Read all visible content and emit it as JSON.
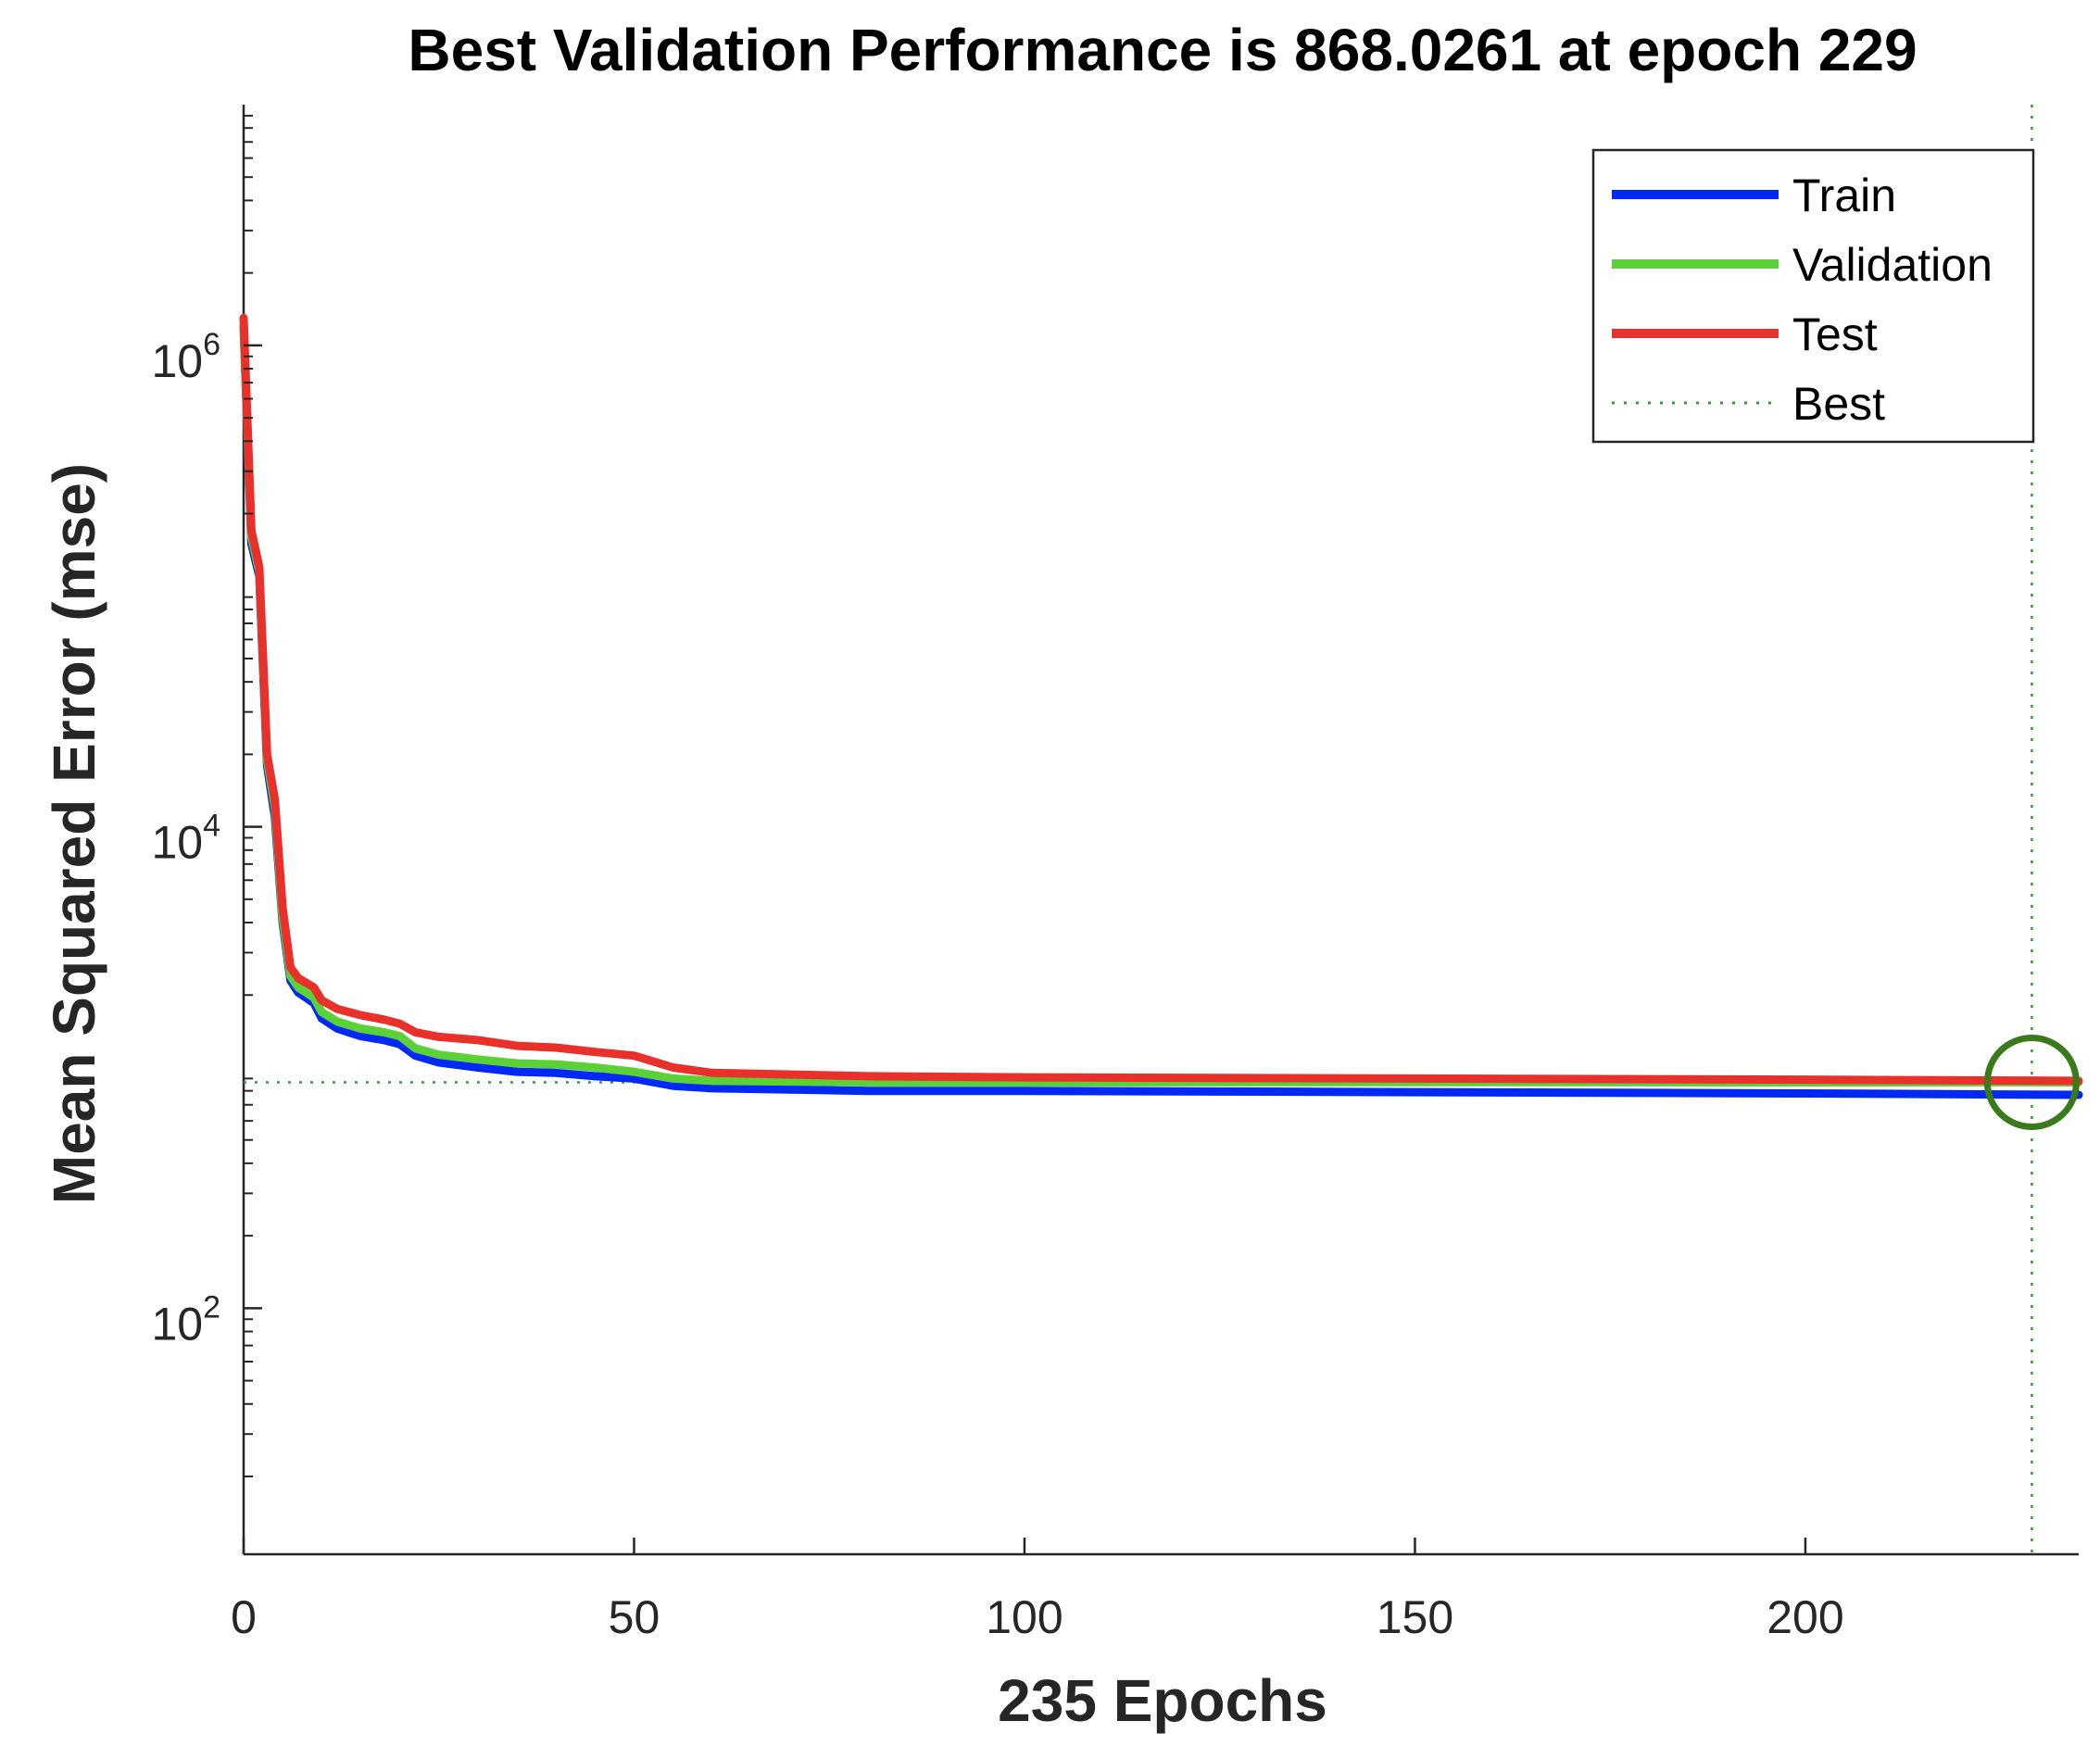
{
  "chart_data": {
    "type": "line",
    "title": "Best Validation Performance is 868.0261 at epoch 229",
    "xlabel": "235 Epochs",
    "ylabel": "Mean Squared Error  (mse)",
    "yscale": "log",
    "xlim": [
      0,
      235
    ],
    "ylim": [
      9.5,
      10000000
    ],
    "x_ticks": [
      0,
      50,
      100,
      150,
      200
    ],
    "x_tick_labels": [
      "0",
      "50",
      "100",
      "150",
      "200"
    ],
    "y_ticks": [
      {
        "value": 100,
        "base": "10",
        "exp": "2"
      },
      {
        "value": 10000,
        "base": "10",
        "exp": "4"
      },
      {
        "value": 1000000,
        "base": "10",
        "exp": "6"
      }
    ],
    "legend_position": "top-right",
    "series": [
      {
        "name": "Train",
        "color": "#0029f5",
        "points": [
          [
            0,
            1200000
          ],
          [
            1,
            150000
          ],
          [
            2,
            110000
          ],
          [
            3,
            18000
          ],
          [
            4,
            11000
          ],
          [
            5,
            4000
          ],
          [
            6,
            2300
          ],
          [
            7,
            2050
          ],
          [
            8,
            1950
          ],
          [
            9,
            1850
          ],
          [
            10,
            1600
          ],
          [
            12,
            1450
          ],
          [
            15,
            1350
          ],
          [
            18,
            1300
          ],
          [
            20,
            1250
          ],
          [
            22,
            1120
          ],
          [
            25,
            1050
          ],
          [
            30,
            1000
          ],
          [
            35,
            960
          ],
          [
            40,
            950
          ],
          [
            45,
            920
          ],
          [
            50,
            900
          ],
          [
            55,
            840
          ],
          [
            60,
            820
          ],
          [
            80,
            800
          ],
          [
            100,
            800
          ],
          [
            150,
            790
          ],
          [
            200,
            780
          ],
          [
            235,
            770
          ]
        ]
      },
      {
        "name": "Validation",
        "color": "#5cd137",
        "points": [
          [
            0,
            1200000
          ],
          [
            1,
            160000
          ],
          [
            2,
            115000
          ],
          [
            3,
            19000
          ],
          [
            4,
            12000
          ],
          [
            5,
            4200
          ],
          [
            6,
            2400
          ],
          [
            7,
            2150
          ],
          [
            8,
            2050
          ],
          [
            9,
            1950
          ],
          [
            10,
            1700
          ],
          [
            12,
            1550
          ],
          [
            15,
            1450
          ],
          [
            18,
            1400
          ],
          [
            20,
            1350
          ],
          [
            22,
            1200
          ],
          [
            25,
            1130
          ],
          [
            30,
            1080
          ],
          [
            35,
            1040
          ],
          [
            40,
            1030
          ],
          [
            45,
            1000
          ],
          [
            50,
            960
          ],
          [
            55,
            900
          ],
          [
            60,
            880
          ],
          [
            80,
            868
          ],
          [
            100,
            868
          ],
          [
            150,
            870
          ],
          [
            200,
            868
          ],
          [
            229,
            868.0261
          ],
          [
            235,
            868
          ]
        ]
      },
      {
        "name": "Test",
        "color": "#e8312b",
        "points": [
          [
            0,
            1300000
          ],
          [
            1,
            170000
          ],
          [
            2,
            120000
          ],
          [
            3,
            20000
          ],
          [
            4,
            13000
          ],
          [
            5,
            4600
          ],
          [
            6,
            2600
          ],
          [
            7,
            2350
          ],
          [
            8,
            2250
          ],
          [
            9,
            2150
          ],
          [
            10,
            1900
          ],
          [
            12,
            1750
          ],
          [
            15,
            1650
          ],
          [
            18,
            1580
          ],
          [
            20,
            1520
          ],
          [
            22,
            1400
          ],
          [
            25,
            1340
          ],
          [
            30,
            1300
          ],
          [
            35,
            1230
          ],
          [
            40,
            1210
          ],
          [
            45,
            1160
          ],
          [
            50,
            1120
          ],
          [
            55,
            1000
          ],
          [
            60,
            950
          ],
          [
            80,
            920
          ],
          [
            100,
            910
          ],
          [
            150,
            900
          ],
          [
            200,
            890
          ],
          [
            235,
            880
          ]
        ]
      }
    ],
    "best": {
      "label": "Best",
      "epoch": 229,
      "value": 868.0261,
      "color": "#2ca02c",
      "marker_color": "#3a7a1a"
    }
  }
}
